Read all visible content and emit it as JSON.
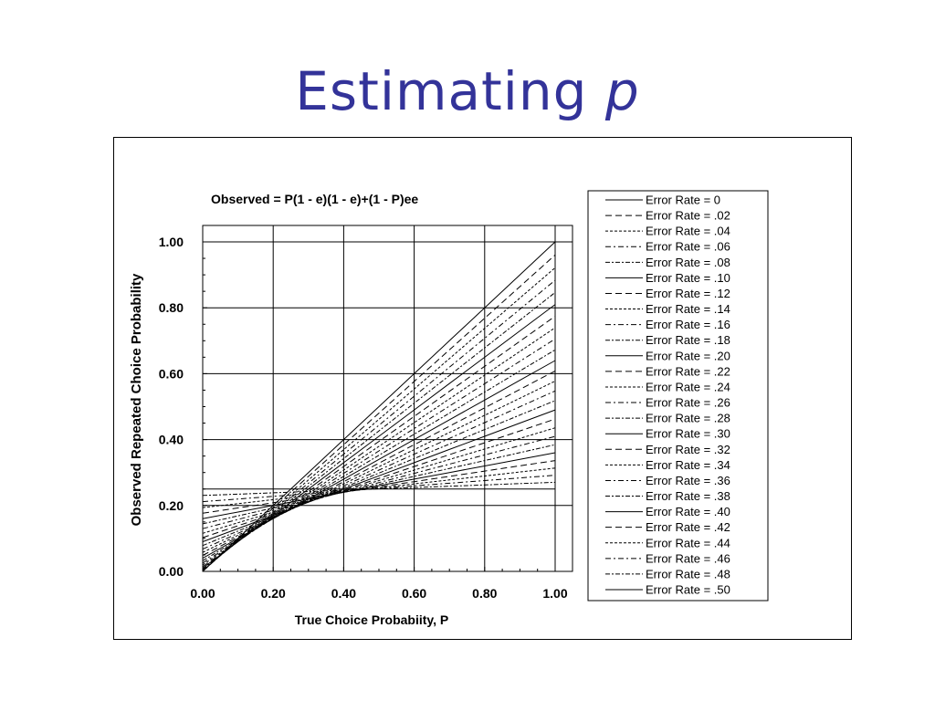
{
  "slide": {
    "title": "Estimating ",
    "title_var": "p"
  },
  "chart_data": {
    "type": "line",
    "title": "Observed = P(1 - e)(1 - e)+(1 - P)ee",
    "xlabel": "True Choice Probabiity, P",
    "ylabel": "Observed Repeated Choice Probability",
    "xlim": [
      0,
      1
    ],
    "ylim": [
      0,
      1
    ],
    "grid": true,
    "legend_position": "right",
    "x_ticks": [
      "0.00",
      "0.20",
      "0.40",
      "0.60",
      "0.80",
      "1.00"
    ],
    "y_ticks": [
      "0.00",
      "0.20",
      "0.40",
      "0.60",
      "0.80",
      "1.00"
    ],
    "x": [
      0,
      0.1,
      0.2,
      0.3,
      0.4,
      0.5,
      0.6,
      0.7,
      0.8,
      0.9,
      1.0
    ],
    "series": [
      {
        "name": "Error Rate = 0",
        "e": 0.0,
        "dash": "solid",
        "values": [
          0,
          0.1,
          0.2,
          0.3,
          0.4,
          0.5,
          0.6,
          0.7,
          0.8,
          0.9,
          1.0
        ]
      },
      {
        "name": "Error Rate = .02",
        "e": 0.02,
        "dash": "dashed",
        "values": [
          0.0004,
          0.0964,
          0.1924,
          0.2885,
          0.3845,
          0.4804,
          0.5764,
          0.6724,
          0.7684,
          0.8644,
          0.9604
        ]
      },
      {
        "name": "Error Rate = .04",
        "e": 0.04,
        "dash": "dotted",
        "values": [
          0.0016,
          0.0936,
          0.1856,
          0.2776,
          0.3696,
          0.4616,
          0.5536,
          0.6456,
          0.7376,
          0.8296,
          0.9216
        ]
      },
      {
        "name": "Error Rate = .06",
        "e": 0.06,
        "dash": "dashdot",
        "values": [
          0.0036,
          0.0916,
          0.1796,
          0.2676,
          0.3556,
          0.4436,
          0.5316,
          0.6196,
          0.7076,
          0.7956,
          0.8836
        ]
      },
      {
        "name": "Error Rate = .08",
        "e": 0.08,
        "dash": "dashdot2",
        "values": [
          0.0064,
          0.0904,
          0.1744,
          0.2584,
          0.3424,
          0.4264,
          0.5104,
          0.5944,
          0.6784,
          0.7624,
          0.8464
        ]
      },
      {
        "name": "Error Rate = .10",
        "e": 0.1,
        "dash": "solid",
        "values": [
          0.01,
          0.09,
          0.17,
          0.25,
          0.33,
          0.41,
          0.49,
          0.57,
          0.65,
          0.73,
          0.81
        ]
      },
      {
        "name": "Error Rate = .12",
        "e": 0.12,
        "dash": "dashed",
        "values": [
          0.0144,
          0.0904,
          0.1664,
          0.2424,
          0.3184,
          0.3944,
          0.4704,
          0.5464,
          0.6224,
          0.6984,
          0.7744
        ]
      },
      {
        "name": "Error Rate = .14",
        "e": 0.14,
        "dash": "dotted",
        "values": [
          0.0196,
          0.0916,
          0.1636,
          0.2356,
          0.3076,
          0.3796,
          0.4516,
          0.5236,
          0.5956,
          0.6676,
          0.7396
        ]
      },
      {
        "name": "Error Rate = .16",
        "e": 0.16,
        "dash": "dashdot",
        "values": [
          0.0256,
          0.0936,
          0.1616,
          0.2296,
          0.2976,
          0.3656,
          0.4336,
          0.5016,
          0.5696,
          0.6376,
          0.7056
        ]
      },
      {
        "name": "Error Rate = .18",
        "e": 0.18,
        "dash": "dashdot2",
        "values": [
          0.0324,
          0.0964,
          0.1604,
          0.2244,
          0.2884,
          0.3524,
          0.4164,
          0.4804,
          0.5444,
          0.6084,
          0.6724
        ]
      },
      {
        "name": "Error Rate = .20",
        "e": 0.2,
        "dash": "solid",
        "values": [
          0.04,
          0.1,
          0.16,
          0.22,
          0.28,
          0.34,
          0.4,
          0.46,
          0.52,
          0.58,
          0.64
        ]
      },
      {
        "name": "Error Rate = .22",
        "e": 0.22,
        "dash": "dashed",
        "values": [
          0.0484,
          0.1044,
          0.1604,
          0.2164,
          0.2724,
          0.3284,
          0.3844,
          0.4404,
          0.4964,
          0.5524,
          0.6084
        ]
      },
      {
        "name": "Error Rate = .24",
        "e": 0.24,
        "dash": "dotted",
        "values": [
          0.0576,
          0.1096,
          0.1616,
          0.2136,
          0.2656,
          0.3176,
          0.3696,
          0.4216,
          0.4736,
          0.5256,
          0.5776
        ]
      },
      {
        "name": "Error Rate = .26",
        "e": 0.26,
        "dash": "dashdot",
        "values": [
          0.0676,
          0.1156,
          0.1636,
          0.2116,
          0.2596,
          0.3076,
          0.3556,
          0.4036,
          0.4516,
          0.4996,
          0.5476
        ]
      },
      {
        "name": "Error Rate = .28",
        "e": 0.28,
        "dash": "dashdot2",
        "values": [
          0.0784,
          0.1224,
          0.1664,
          0.2104,
          0.2544,
          0.2984,
          0.3424,
          0.3864,
          0.4304,
          0.4744,
          0.5184
        ]
      },
      {
        "name": "Error Rate = .30",
        "e": 0.3,
        "dash": "solid",
        "values": [
          0.09,
          0.13,
          0.17,
          0.21,
          0.25,
          0.29,
          0.33,
          0.37,
          0.41,
          0.45,
          0.49
        ]
      },
      {
        "name": "Error Rate = .32",
        "e": 0.32,
        "dash": "dashed",
        "values": [
          0.1024,
          0.1384,
          0.1744,
          0.2104,
          0.2464,
          0.2824,
          0.3184,
          0.3544,
          0.3904,
          0.4264,
          0.4624
        ]
      },
      {
        "name": "Error Rate = .34",
        "e": 0.34,
        "dash": "dotted",
        "values": [
          0.1156,
          0.1476,
          0.1796,
          0.2116,
          0.2436,
          0.2756,
          0.3076,
          0.3396,
          0.3716,
          0.4036,
          0.4356
        ]
      },
      {
        "name": "Error Rate = .36",
        "e": 0.36,
        "dash": "dashdot",
        "values": [
          0.1296,
          0.1576,
          0.1856,
          0.2136,
          0.2416,
          0.2696,
          0.2976,
          0.3256,
          0.3536,
          0.3816,
          0.4096
        ]
      },
      {
        "name": "Error Rate = .38",
        "e": 0.38,
        "dash": "dashdot2",
        "values": [
          0.1444,
          0.1684,
          0.1924,
          0.2164,
          0.2404,
          0.2644,
          0.2884,
          0.3124,
          0.3364,
          0.3604,
          0.3844
        ]
      },
      {
        "name": "Error Rate = .40",
        "e": 0.4,
        "dash": "solid",
        "values": [
          0.16,
          0.18,
          0.2,
          0.22,
          0.24,
          0.26,
          0.28,
          0.3,
          0.32,
          0.34,
          0.36
        ]
      },
      {
        "name": "Error Rate = .42",
        "e": 0.42,
        "dash": "dashed",
        "values": [
          0.1764,
          0.1924,
          0.2084,
          0.2244,
          0.2404,
          0.2564,
          0.2724,
          0.2884,
          0.3044,
          0.3204,
          0.3364
        ]
      },
      {
        "name": "Error Rate = .44",
        "e": 0.44,
        "dash": "dotted",
        "values": [
          0.1936,
          0.2056,
          0.2176,
          0.2296,
          0.2416,
          0.2536,
          0.2656,
          0.2776,
          0.2896,
          0.3016,
          0.3136
        ]
      },
      {
        "name": "Error Rate = .46",
        "e": 0.46,
        "dash": "dashdot",
        "values": [
          0.2116,
          0.2196,
          0.2276,
          0.2356,
          0.2436,
          0.2516,
          0.2596,
          0.2676,
          0.2756,
          0.2836,
          0.2916
        ]
      },
      {
        "name": "Error Rate = .48",
        "e": 0.48,
        "dash": "dashdot2",
        "values": [
          0.2304,
          0.2344,
          0.2384,
          0.2424,
          0.2464,
          0.2504,
          0.2544,
          0.2584,
          0.2624,
          0.2664,
          0.2704
        ]
      },
      {
        "name": "Error Rate = .50",
        "e": 0.5,
        "dash": "solid",
        "values": [
          0.25,
          0.25,
          0.25,
          0.25,
          0.25,
          0.25,
          0.25,
          0.25,
          0.25,
          0.25,
          0.25
        ]
      }
    ]
  }
}
